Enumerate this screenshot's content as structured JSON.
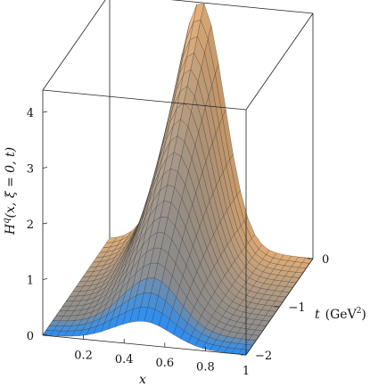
{
  "chart_data": {
    "type": "surface3d",
    "zlabel": {
      "prefix": "H",
      "sup": "q",
      "args": "(x, ξ = 0, t)"
    },
    "xlabel": "x",
    "ylabel": {
      "var": "t",
      "unit": "(GeV",
      "unit_sup": "2",
      "unit_close": ")"
    },
    "x_ticks": [
      "0.2",
      "0.4",
      "0.6",
      "0.8",
      "1"
    ],
    "x_tick_values": [
      0.2,
      0.4,
      0.6,
      0.8,
      1.0
    ],
    "t_ticks": [
      "0",
      "−1",
      "−2"
    ],
    "t_tick_values": [
      0,
      -1,
      -2
    ],
    "z_ticks": [
      "0",
      "1",
      "2",
      "3",
      "4"
    ],
    "z_tick_values": [
      0,
      1,
      2,
      3,
      4
    ],
    "xlim": [
      0,
      1
    ],
    "tlim": [
      -2,
      0
    ],
    "zlim": [
      0,
      4.4
    ],
    "surface_peak": {
      "x": 0.45,
      "t": 0,
      "z": 4.4
    },
    "surface_edge_at_t_min": {
      "peak_x": 0.4,
      "peak_z": 1.0
    },
    "colors": {
      "back_t": "#e3ad75",
      "front_t": "#2e8ef0",
      "mid_t": "#8d8d8d",
      "mesh": "#2b2b2b"
    }
  }
}
